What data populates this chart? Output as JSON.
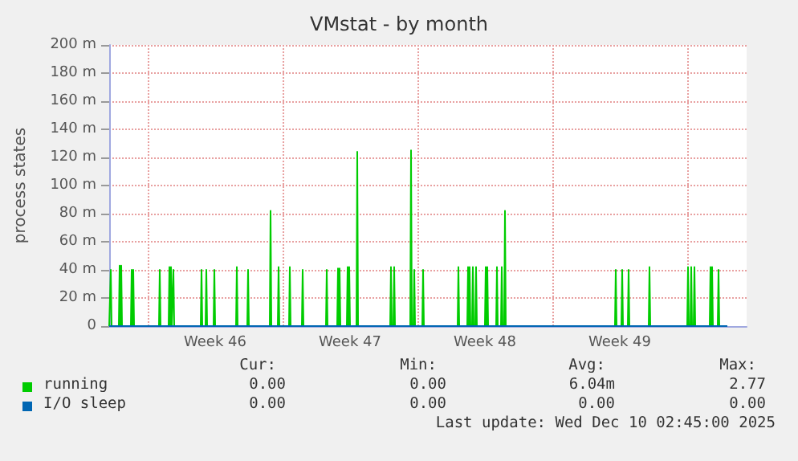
{
  "chart_data": {
    "type": "line",
    "title": "VMstat - by month",
    "ylabel": "process states",
    "xlim": [
      "2025-11-08T00:00",
      "2025-12-11T02:00"
    ],
    "xticks": [
      {
        "value": "2025-11-10",
        "label": null
      },
      {
        "value": "2025-11-17",
        "label": null
      },
      {
        "value": "2025-11-24",
        "label": null
      },
      {
        "value": "2025-12-01",
        "label": null
      },
      {
        "value": "2025-12-08",
        "label": null
      },
      {
        "value": "2025-11-13T12:00",
        "label": "Week 46"
      },
      {
        "value": "2025-11-20T12:00",
        "label": "Week 47"
      },
      {
        "value": "2025-11-27T12:00",
        "label": "Week 48"
      },
      {
        "value": "2025-12-04T12:00",
        "label": "Week 49"
      }
    ],
    "ylim": [
      0,
      200
    ],
    "yticks": [
      0,
      {
        "value": 20,
        "label": "20 m"
      },
      {
        "value": 40,
        "label": "40 m"
      },
      {
        "value": 60,
        "label": "60 m"
      },
      {
        "value": 80,
        "label": "80 m"
      },
      {
        "value": 100,
        "label": "100 m"
      },
      {
        "value": 120,
        "label": "120 m"
      },
      {
        "value": 140,
        "label": "140 m"
      },
      {
        "value": 160,
        "label": "160 m"
      },
      {
        "value": 180,
        "label": "180 m"
      },
      {
        "value": 200,
        "label": "200 m"
      }
    ],
    "grid": true,
    "legend": "bottom left",
    "marker": "none",
    "line_style": "solid",
    "annotations": [
      "Cur:",
      "Min:",
      "Avg:",
      "Max:",
      "0.00",
      "0.00",
      "6.04m",
      "2.77",
      "0.00",
      "0.00",
      "0.00",
      "0.00",
      "Last update: Wed Dec 10 02:45:00 2025"
    ],
    "series": [
      {
        "name": "I/O sleep",
        "color": "#0066b3",
        "x": [
          "2025-11-08T00:00",
          "2025-12-10T02:00"
        ],
        "values": [
          0,
          0
        ]
      },
      {
        "name": "running",
        "color": "#00cc00",
        "x": [
          "2025-11-08T00:00",
          "2025-11-08T01:00",
          "2025-11-08T02:00",
          "2025-11-08T03:00",
          "2025-11-08T12:00",
          "2025-11-08T13:00",
          "2025-11-08T14:00",
          "2025-11-08T15:00",
          "2025-11-08T16:00",
          "2025-11-09T03:00",
          "2025-11-09T04:00",
          "2025-11-09T05:00",
          "2025-11-09T06:00",
          "2025-11-09T07:00",
          "2025-11-10T14:00",
          "2025-11-10T15:00",
          "2025-11-10T16:00",
          "2025-11-11T02:00",
          "2025-11-11T03:00",
          "2025-11-11T04:00",
          "2025-11-11T05:00",
          "2025-11-11T06:00",
          "2025-11-11T07:00",
          "2025-11-11T08:00",
          "2025-11-11T09:00",
          "2025-11-12T18:00",
          "2025-11-12T19:00",
          "2025-11-12T20:00",
          "2025-11-13T00:00",
          "2025-11-13T01:00",
          "2025-11-13T02:00",
          "2025-11-13T10:00",
          "2025-11-13T11:00",
          "2025-11-13T12:00",
          "2025-11-14T14:00",
          "2025-11-14T15:00",
          "2025-11-14T16:00",
          "2025-11-15T04:00",
          "2025-11-15T05:00",
          "2025-11-15T06:00",
          "2025-11-16T08:00",
          "2025-11-16T09:00",
          "2025-11-16T10:00",
          "2025-11-16T18:00",
          "2025-11-16T19:00",
          "2025-11-16T20:00",
          "2025-11-17T08:00",
          "2025-11-17T09:00",
          "2025-11-17T10:00",
          "2025-11-18T00:00",
          "2025-11-18T01:00",
          "2025-11-18T02:00",
          "2025-11-19T06:00",
          "2025-11-19T07:00",
          "2025-11-19T08:00",
          "2025-11-19T20:00",
          "2025-11-19T21:00",
          "2025-11-19T22:00",
          "2025-11-19T23:00",
          "2025-11-20T00:00",
          "2025-11-20T08:00",
          "2025-11-20T09:00",
          "2025-11-20T10:00",
          "2025-11-20T11:00",
          "2025-11-20T12:00",
          "2025-11-20T20:00",
          "2025-11-20T21:00",
          "2025-11-20T22:00",
          "2025-11-22T14:00",
          "2025-11-22T15:00",
          "2025-11-22T16:00",
          "2025-11-22T18:00",
          "2025-11-22T19:00",
          "2025-11-22T20:00",
          "2025-11-23T15:00",
          "2025-11-23T16:00",
          "2025-11-23T17:00",
          "2025-11-23T19:00",
          "2025-11-23T20:00",
          "2025-11-23T21:00",
          "2025-11-24T06:00",
          "2025-11-24T07:00",
          "2025-11-24T08:00",
          "2025-11-26T02:00",
          "2025-11-26T03:00",
          "2025-11-26T04:00",
          "2025-11-26T14:00",
          "2025-11-26T15:00",
          "2025-11-26T16:00",
          "2025-11-26T17:00",
          "2025-11-26T18:00",
          "2025-11-26T20:00",
          "2025-11-26T21:00",
          "2025-11-26T22:00",
          "2025-11-27T00:00",
          "2025-11-27T01:00",
          "2025-11-27T02:00",
          "2025-11-27T12:00",
          "2025-11-27T13:00",
          "2025-11-27T14:00",
          "2025-11-27T15:00",
          "2025-11-27T16:00",
          "2025-11-28T02:00",
          "2025-11-28T03:00",
          "2025-11-28T04:00",
          "2025-11-28T08:00",
          "2025-11-28T09:00",
          "2025-11-28T10:00",
          "2025-11-28T12:00",
          "2025-11-28T13:00",
          "2025-11-28T14:00",
          "2025-12-04T06:00",
          "2025-12-04T07:00",
          "2025-12-04T08:00",
          "2025-12-04T14:00",
          "2025-12-04T15:00",
          "2025-12-04T16:00",
          "2025-12-04T22:00",
          "2025-12-04T23:00",
          "2025-12-05T00:00",
          "2025-12-06T00:00",
          "2025-12-06T01:00",
          "2025-12-06T02:00",
          "2025-12-08T00:00",
          "2025-12-08T01:00",
          "2025-12-08T02:00",
          "2025-12-08T04:00",
          "2025-12-08T05:00",
          "2025-12-08T06:00",
          "2025-12-08T08:00",
          "2025-12-08T09:00",
          "2025-12-08T10:00",
          "2025-12-09T04:00",
          "2025-12-09T05:00",
          "2025-12-09T06:00",
          "2025-12-09T07:00",
          "2025-12-09T08:00",
          "2025-12-09T14:00",
          "2025-12-09T15:00",
          "2025-12-09T16:00",
          "2025-12-10T02:00"
        ],
        "values": [
          0,
          0,
          40,
          0,
          0,
          43,
          0,
          43,
          0,
          0,
          40,
          0,
          40,
          0,
          0,
          40,
          0,
          0,
          42,
          0,
          42,
          0,
          0,
          40,
          0,
          0,
          40,
          0,
          0,
          40,
          0,
          0,
          40,
          0,
          0,
          42,
          0,
          0,
          40,
          0,
          0,
          82,
          0,
          0,
          42,
          0,
          0,
          42,
          0,
          0,
          40,
          0,
          0,
          40,
          0,
          0,
          41,
          0,
          41,
          0,
          0,
          42,
          0,
          42,
          0,
          0,
          124,
          0,
          0,
          42,
          0,
          0,
          42,
          0,
          0,
          125,
          0,
          0,
          40,
          0,
          0,
          40,
          0,
          0,
          42,
          0,
          0,
          42,
          0,
          42,
          0,
          0,
          42,
          0,
          0,
          42,
          0,
          0,
          42,
          0,
          42,
          0,
          0,
          42,
          0,
          0,
          42,
          0,
          0,
          82,
          0,
          0,
          40,
          0,
          0,
          40,
          0,
          0,
          40,
          0,
          0,
          42,
          0,
          0,
          42,
          0,
          0,
          42,
          0,
          0,
          42,
          0,
          0,
          42,
          0,
          42,
          0,
          0,
          40,
          0,
          0
        ]
      }
    ]
  }
}
